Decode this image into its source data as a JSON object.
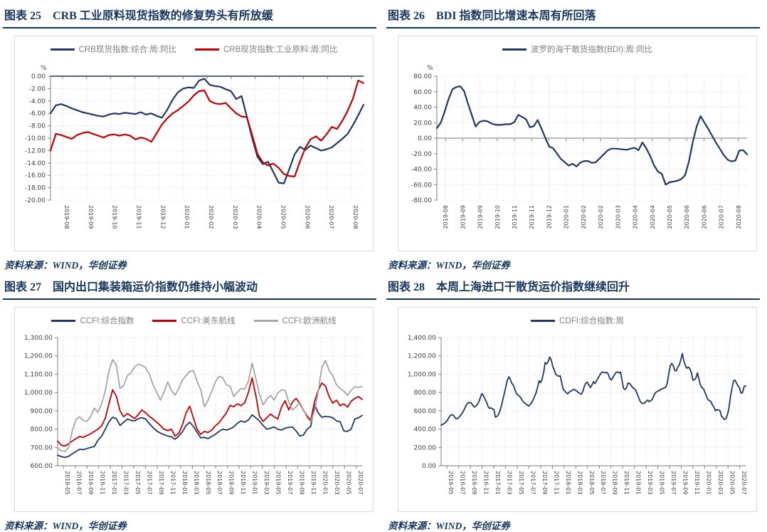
{
  "figures": [
    {
      "tag": "图表 25",
      "title": "CRB 工业原料现货指数的修复势头有所放缓",
      "source": "资料来源：WIND，华创证券"
    },
    {
      "tag": "图表 26",
      "title": "BDI 指数同比增速本周有所回落",
      "source": "资料来源：WIND，华创证券"
    },
    {
      "tag": "图表 27",
      "title": "国内出口集装箱运价指数仍维持小幅波动",
      "source": "资料来源：WIND，华创证券"
    },
    {
      "tag": "图表 28",
      "title": "本周上海进口干散货运价指数继续回升",
      "source": "资料来源：WIND，华创证券"
    }
  ],
  "colors": {
    "navy": "#1f3864",
    "red": "#c00000",
    "gray": "#a6a6a6",
    "title_navy": "#17365d",
    "grid": "#d9d9d9"
  },
  "chart_data": [
    {
      "type": "line",
      "title": "CRB 工业原料现货指数的修复势头有所放缓",
      "ylabel": "%",
      "ylim": [
        -20,
        0
      ],
      "legend": [
        {
          "label": "CRB现货指数:综合:周:同比",
          "color": "#1f3864"
        },
        {
          "label": "CRB现货指数:工业原料:周:同比",
          "color": "#c00000"
        }
      ],
      "yticks": [
        {
          "v": 0,
          "label": "0.00"
        },
        {
          "v": -2,
          "label": "-2.00"
        },
        {
          "v": -4,
          "label": "-4.00"
        },
        {
          "v": -6,
          "label": "-6.00"
        },
        {
          "v": -8,
          "label": "-8.00"
        },
        {
          "v": -10,
          "label": "-10.00"
        },
        {
          "v": -12,
          "label": "-12.00"
        },
        {
          "v": -14,
          "label": "-14.00"
        },
        {
          "v": -16,
          "label": "-16.00"
        },
        {
          "v": -18,
          "label": "-18.00"
        },
        {
          "v": -20,
          "label": "-20.00"
        }
      ],
      "xlabels": [
        "2019-08",
        "2019-09",
        "2019-10",
        "2019-11",
        "2019-12",
        "2020-01",
        "2020-02",
        "2020-03",
        "2020-04",
        "2020-05",
        "2020-06",
        "2020-07",
        "2020-08"
      ],
      "series": [
        {
          "name": "CRB现货指数:综合:周:同比",
          "color": "#1f3864",
          "values": [
            -6.0,
            -4.7,
            -4.5,
            -4.8,
            -5.2,
            -5.5,
            -5.8,
            -6.0,
            -6.2,
            -6.4,
            -6.5,
            -6.2,
            -6.0,
            -6.1,
            -5.9,
            -6.0,
            -6.1,
            -5.8,
            -6.2,
            -6.0,
            -6.4,
            -6.7,
            -5.4,
            -3.8,
            -2.6,
            -2.0,
            -1.8,
            -1.9,
            -0.7,
            -0.4,
            -1.4,
            -1.6,
            -1.7,
            -2.1,
            -2.4,
            -3.7,
            -3.2,
            -6.5,
            -10.0,
            -13.0,
            -14.2,
            -13.8,
            -15.5,
            -17.2,
            -17.3,
            -15.0,
            -12.6,
            -11.4,
            -11.9,
            -11.2,
            -11.6,
            -12.0,
            -11.8,
            -11.5,
            -10.8,
            -10.1,
            -9.3,
            -7.9,
            -6.3,
            -4.6
          ]
        },
        {
          "name": "CRB现货指数:工业原料:周:同比",
          "color": "#c00000",
          "values": [
            -12.0,
            -9.3,
            -9.5,
            -9.8,
            -10.1,
            -9.5,
            -9.2,
            -9.0,
            -9.3,
            -9.6,
            -9.9,
            -9.5,
            -9.4,
            -9.6,
            -9.4,
            -9.6,
            -10.2,
            -9.9,
            -10.1,
            -10.6,
            -9.2,
            -7.8,
            -6.8,
            -6.0,
            -5.5,
            -4.8,
            -4.1,
            -3.1,
            -2.4,
            -2.3,
            -4.0,
            -4.4,
            -4.5,
            -4.3,
            -5.2,
            -6.0,
            -6.5,
            -6.6,
            -9.5,
            -12.5,
            -13.9,
            -14.4,
            -14.1,
            -14.8,
            -15.8,
            -16.1,
            -16.2,
            -13.8,
            -11.6,
            -10.2,
            -9.7,
            -10.4,
            -9.4,
            -8.2,
            -8.5,
            -7.2,
            -5.6,
            -3.6,
            -0.7,
            -1.1
          ]
        }
      ]
    },
    {
      "type": "line",
      "title": "BDI 指数同比增速本周有所回落",
      "ylabel": "%",
      "ylim": [
        -80,
        80
      ],
      "legend": [
        {
          "label": "波罗的海干散货指数(BDI):周:同比",
          "color": "#1f3864"
        }
      ],
      "yticks": [
        {
          "v": 80,
          "label": "80.00"
        },
        {
          "v": 60,
          "label": "60.00"
        },
        {
          "v": 40,
          "label": "40.00"
        },
        {
          "v": 20,
          "label": "20.00"
        },
        {
          "v": 0,
          "label": "0.00"
        },
        {
          "v": -20,
          "label": "-20.00"
        },
        {
          "v": -40,
          "label": "-40.00"
        },
        {
          "v": -60,
          "label": "-60.00"
        },
        {
          "v": -80,
          "label": "-80.00"
        }
      ],
      "xlabels": [
        "2019-08",
        "2019-09",
        "2019-09",
        "2019-10",
        "2019-11",
        "2019-11",
        "2019-12",
        "2020-01",
        "2020-02",
        "2020-02",
        "2020-03",
        "2020-04",
        "2020-04",
        "2020-05",
        "2020-06",
        "2020-06",
        "2020-07",
        "2020-08"
      ],
      "series": [
        {
          "name": "波罗的海干散货指数(BDI):周:同比",
          "color": "#1f3864",
          "values": [
            13,
            20,
            34,
            50,
            63,
            66,
            67,
            61,
            45,
            30,
            15,
            21,
            22.5,
            22,
            19,
            17.5,
            17,
            17.5,
            18,
            18,
            21,
            30,
            27.5,
            24.5,
            14,
            15.5,
            23.5,
            12,
            0,
            -11,
            -13,
            -20,
            -27,
            -31,
            -35.5,
            -33,
            -36.5,
            -31.5,
            -29.5,
            -29.5,
            -32,
            -31,
            -26,
            -21,
            -16,
            -13.5,
            -13.5,
            -14,
            -14.5,
            -15,
            -13.5,
            -12.5,
            -15.5,
            -5.5,
            -13,
            -23,
            -35,
            -43,
            -46,
            -60,
            -57,
            -56,
            -55,
            -53,
            -48,
            -30,
            -5,
            15,
            28.5,
            20,
            12,
            3,
            -6,
            -14,
            -22,
            -28,
            -30,
            -29,
            -16,
            -15.5,
            -21
          ]
        }
      ]
    },
    {
      "type": "line",
      "title": "国内出口集装箱运价指数仍维持小幅波动",
      "ylabel": "",
      "ylim": [
        600,
        1300
      ],
      "legend": [
        {
          "label": "CCFI:综合指数",
          "color": "#1f3864"
        },
        {
          "label": "CCFI:美东航线",
          "color": "#c00000"
        },
        {
          "label": "CCFI:欧洲航线",
          "color": "#a6a6a6"
        }
      ],
      "yticks": [
        {
          "v": 1300,
          "label": "1,300.00"
        },
        {
          "v": 1200,
          "label": "1,200.00"
        },
        {
          "v": 1100,
          "label": "1,100.00"
        },
        {
          "v": 1000,
          "label": "1,000.00"
        },
        {
          "v": 900,
          "label": "900.00"
        },
        {
          "v": 800,
          "label": "800.00"
        },
        {
          "v": 700,
          "label": "700.00"
        },
        {
          "v": 600,
          "label": "600.00"
        }
      ],
      "xlabels": [
        "2016-05",
        "2016-07",
        "2016-09",
        "2016-11",
        "2017-01",
        "2017-03",
        "2017-05",
        "2017-07",
        "2017-09",
        "2017-11",
        "2018-01",
        "2018-03",
        "2018-05",
        "2018-07",
        "2018-09",
        "2018-11",
        "2019-01",
        "2019-03",
        "2019-05",
        "2019-07",
        "2019-09",
        "2019-11",
        "2020-01",
        "2020-03",
        "2020-05",
        "2020-07"
      ],
      "series": [
        {
          "name": "CCFI:综合指数",
          "color": "#1f3864",
          "values": [
            658,
            650,
            645,
            652,
            665,
            678,
            690,
            688,
            694,
            700,
            705,
            740,
            762,
            800,
            840,
            865,
            858,
            820,
            838,
            855,
            848,
            845,
            858,
            862,
            855,
            830,
            808,
            790,
            778,
            770,
            762,
            758,
            745,
            762,
            785,
            820,
            838,
            815,
            782,
            752,
            755,
            748,
            760,
            772,
            788,
            800,
            795,
            802,
            812,
            832,
            845,
            838,
            850,
            878,
            862,
            845,
            820,
            800,
            805,
            812,
            800,
            795,
            805,
            810,
            812,
            790,
            762,
            768,
            800,
            815,
            935,
            890,
            865,
            870,
            868,
            862,
            845,
            840,
            790,
            788,
            800,
            855,
            862,
            875
          ]
        },
        {
          "name": "CCFI:美东航线",
          "color": "#c00000",
          "values": [
            735,
            712,
            708,
            720,
            735,
            748,
            760,
            755,
            765,
            775,
            788,
            800,
            818,
            860,
            940,
            1015,
            980,
            900,
            868,
            885,
            872,
            858,
            880,
            905,
            888,
            870,
            855,
            838,
            820,
            800,
            792,
            800,
            762,
            778,
            822,
            888,
            925,
            862,
            800,
            772,
            788,
            782,
            795,
            818,
            835,
            862,
            888,
            930,
            922,
            938,
            928,
            945,
            1000,
            1080,
            985,
            872,
            842,
            862,
            882,
            868,
            855,
            920,
            955,
            905,
            948,
            968,
            942,
            902,
            872,
            848,
            948,
            1010,
            1052,
            1035,
            978,
            942,
            958,
            928,
            938,
            920,
            952,
            968,
            978,
            962
          ]
        },
        {
          "name": "CCFI:欧洲航线",
          "color": "#a6a6a6",
          "values": [
            695,
            682,
            678,
            700,
            790,
            852,
            868,
            848,
            842,
            868,
            915,
            892,
            940,
            1010,
            1120,
            1180,
            1150,
            1022,
            1038,
            1092,
            1108,
            1140,
            1155,
            1148,
            1135,
            1100,
            1042,
            1002,
            958,
            1002,
            1058,
            1012,
            985,
            1022,
            1068,
            1092,
            1115,
            1120,
            1062,
            1015,
            922,
            958,
            1005,
            1058,
            1088,
            1082,
            1042,
            1035,
            978,
            1002,
            1022,
            1018,
            1062,
            1160,
            1078,
            992,
            932,
            962,
            985,
            958,
            998,
            1015,
            1012,
            948,
            905,
            922,
            948,
            905,
            862,
            840,
            902,
            1000,
            1138,
            1175,
            1120,
            1092,
            1042,
            1022,
            1008,
            985,
            1012,
            1032,
            1028,
            1033
          ]
        }
      ]
    },
    {
      "type": "line",
      "title": "本周上海进口干散货运价指数继续回升",
      "ylabel": "",
      "ylim": [
        0,
        1400
      ],
      "legend": [
        {
          "label": "CDFI:综合指数:周",
          "color": "#1f3864"
        }
      ],
      "yticks": [
        {
          "v": 1400,
          "label": "1,400.00"
        },
        {
          "v": 1200,
          "label": "1,200.00"
        },
        {
          "v": 1000,
          "label": "1,000.00"
        },
        {
          "v": 800,
          "label": "800.00"
        },
        {
          "v": 600,
          "label": "600.00"
        },
        {
          "v": 400,
          "label": "400.00"
        },
        {
          "v": 200,
          "label": "200.00"
        },
        {
          "v": 0,
          "label": "0.00"
        }
      ],
      "xlabels": [
        "2016-05",
        "2016-07",
        "2016-09",
        "2016-11",
        "2017-01",
        "2017-03",
        "2017-05",
        "2017-07",
        "2017-09",
        "2017-11",
        "2018-01",
        "2018-03",
        "2018-05",
        "2018-07",
        "2018-09",
        "2018-11",
        "2019-01",
        "2019-03",
        "2019-05",
        "2019-07",
        "2019-09",
        "2019-11",
        "2020-01",
        "2020-03",
        "2020-05",
        "2020-07"
      ],
      "series": [
        {
          "name": "CDFI:综合指数:周",
          "color": "#1f3864",
          "values": [
            445,
            452,
            462,
            475,
            492,
            520,
            548,
            558,
            552,
            530,
            512,
            518,
            532,
            552,
            575,
            605,
            640,
            672,
            690,
            688,
            685,
            662,
            640,
            652,
            672,
            698,
            742,
            788,
            768,
            732,
            700,
            652,
            628,
            632,
            622,
            615,
            532,
            538,
            558,
            600,
            658,
            728,
            798,
            868,
            938,
            972,
            935,
            898,
            878,
            828,
            788,
            772,
            758,
            738,
            708,
            690,
            678,
            665,
            652,
            668,
            688,
            718,
            758,
            798,
            858,
            928,
            908,
            948,
            1018,
            1128,
            1112,
            1138,
            1188,
            1158,
            1088,
            1048,
            1000,
            985,
            978,
            982,
            905,
            832,
            818,
            798,
            785,
            805,
            815,
            825,
            835,
            825,
            815,
            800,
            790,
            782,
            812,
            868,
            905,
            912,
            878,
            855,
            882,
            918,
            898,
            925,
            955,
            982,
            1012,
            1025,
            1018,
            1015,
            1020,
            995,
            950,
            938,
            965,
            995,
            1018,
            1025,
            1015,
            1022,
            930,
            845,
            832,
            855,
            905,
            898,
            878,
            852,
            845,
            828,
            788,
            745,
            705,
            685,
            678,
            688,
            702,
            718,
            700,
            712,
            722,
            762,
            795,
            808,
            818,
            822,
            838,
            842,
            852,
            858,
            902,
            1002,
            1092,
            1118,
            1092,
            1042,
            1035,
            1078,
            1102,
            1158,
            1225,
            1148,
            1098,
            1065,
            1078,
            1060,
            1018,
            935,
            940,
            958,
            1015,
            948,
            882,
            852,
            842,
            800,
            762,
            722,
            712,
            700,
            662,
            640,
            600,
            612,
            610,
            600,
            540,
            522,
            505,
            518,
            562,
            642,
            762,
            852,
            930,
            933,
            900,
            870,
            850,
            792,
            802,
            868,
            872
          ]
        }
      ]
    }
  ]
}
